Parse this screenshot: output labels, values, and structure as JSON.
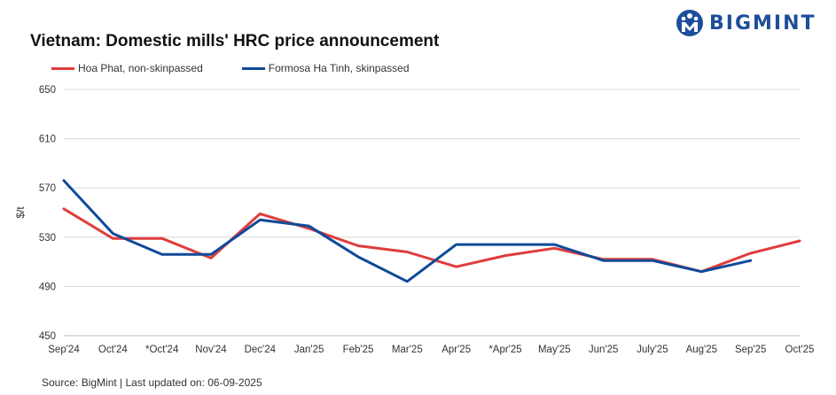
{
  "header": {
    "title": "Vietnam: Domestic mills' HRC price announcement",
    "brand": "BIGMINT"
  },
  "footer": {
    "source": "Source: BigMint | Last updated on:  06-09-2025"
  },
  "chart_data": {
    "type": "line",
    "title": "Vietnam: Domestic mills' HRC price announcement",
    "xlabel": "",
    "ylabel": "$/t",
    "ylim": [
      450,
      650
    ],
    "yticks": [
      450,
      490,
      530,
      570,
      610,
      650
    ],
    "grid": true,
    "legend_position": "top-left",
    "categories": [
      "Sep'24",
      "Oct'24",
      "*Oct'24",
      "Nov'24",
      "Dec'24",
      "Jan'25",
      "Feb'25",
      "Mar'25",
      "Apr'25",
      "*Apr'25",
      "May'25",
      "Jun'25",
      "July'25",
      "Aug'25",
      "Sep'25",
      "Oct'25"
    ],
    "series": [
      {
        "name": "Hoa Phat, non-skinpassed",
        "color": "#e03c3c",
        "values": [
          553,
          529,
          529,
          513,
          549,
          537,
          523,
          518,
          506,
          515,
          521,
          512,
          512,
          502,
          517,
          527
        ]
      },
      {
        "name": "Formosa Ha Tinh, skinpassed",
        "color": "#0f4a99",
        "values": [
          576,
          533,
          516,
          516,
          544,
          539,
          514,
          494,
          524,
          524,
          524,
          511,
          511,
          502,
          511,
          null
        ]
      }
    ]
  }
}
